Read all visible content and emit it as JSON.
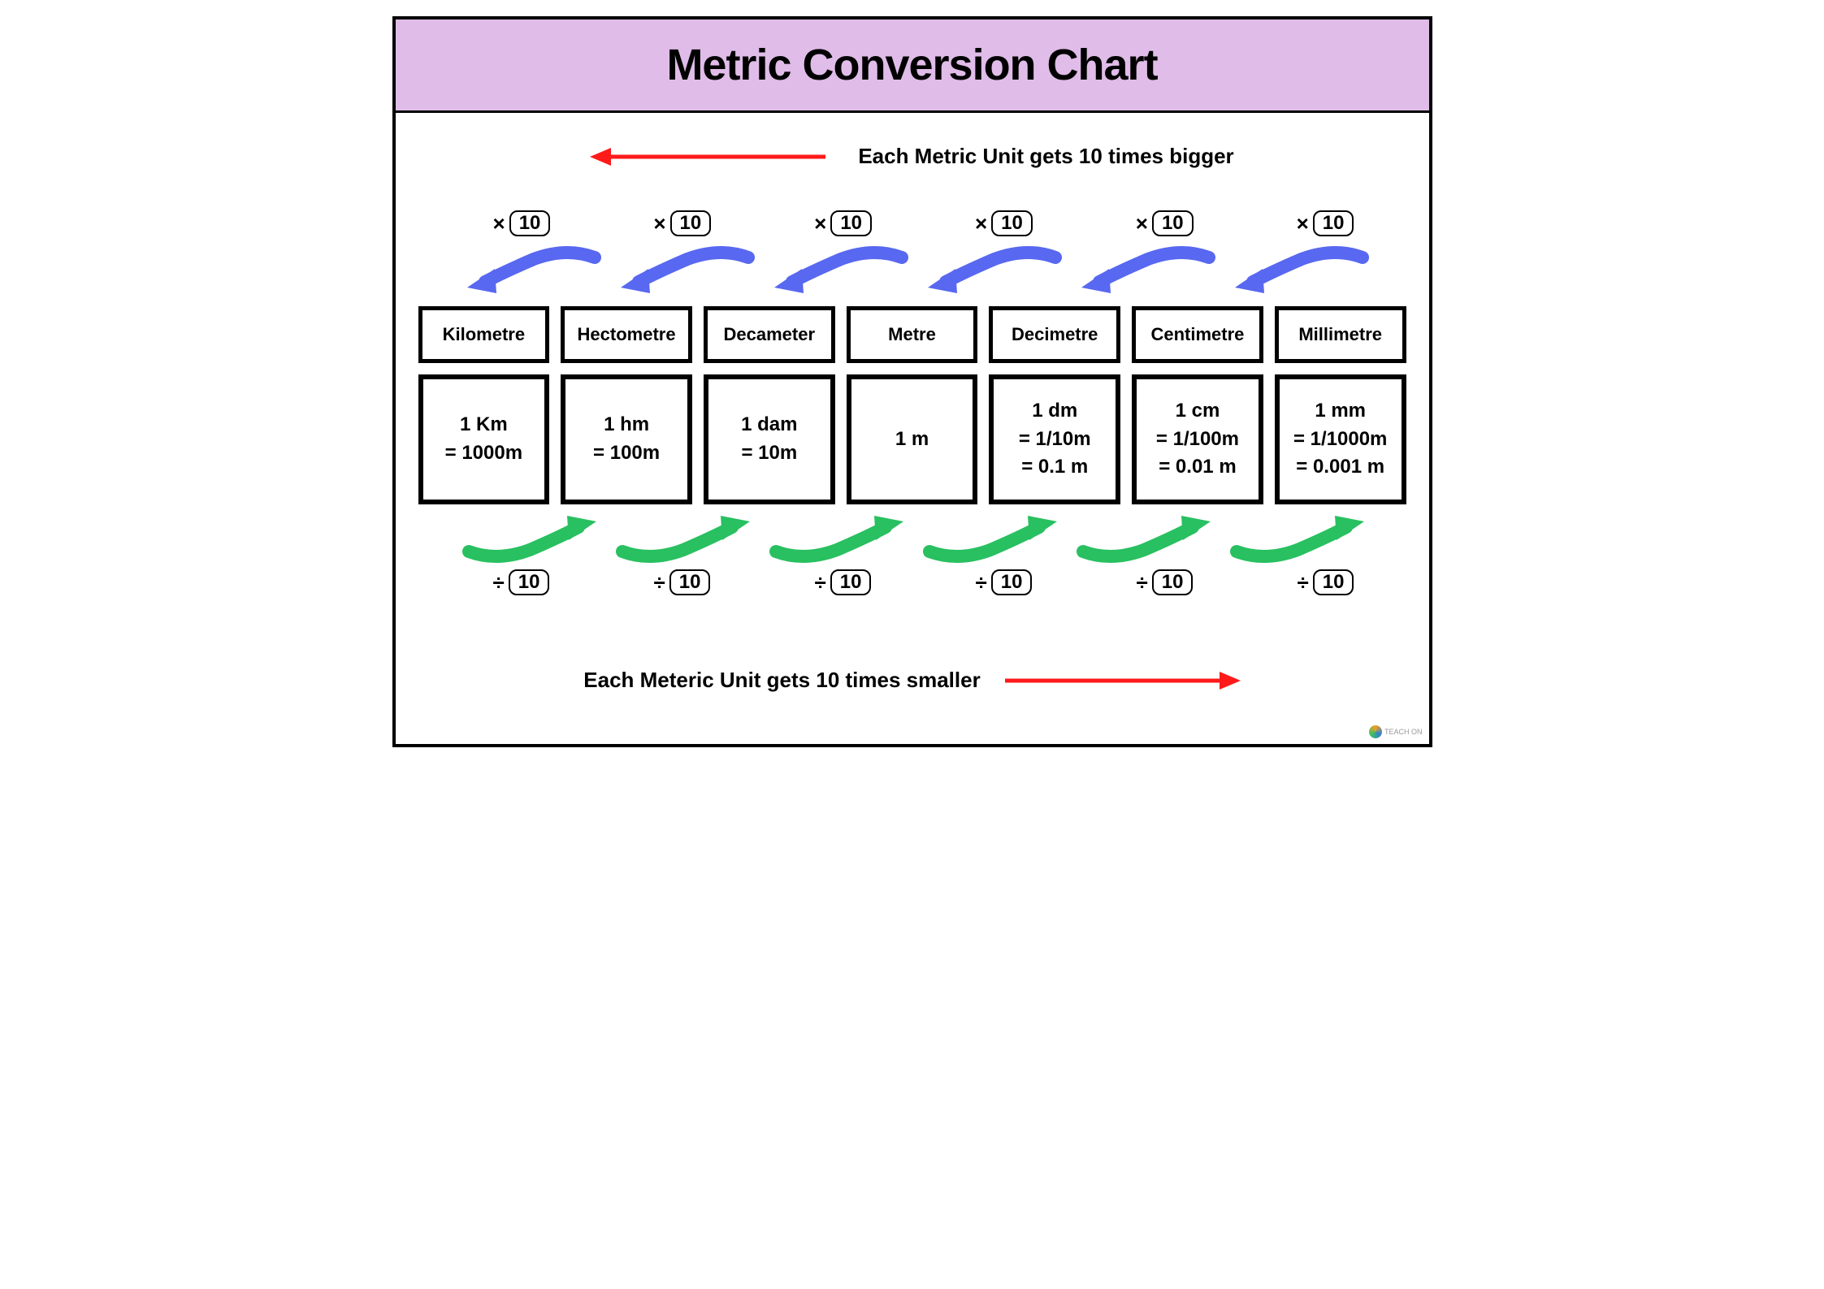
{
  "title": "Metric Conversion Chart",
  "header_bg": "#e0bce8",
  "header_font_size": 54,
  "top_caption": "Each Metric Unit gets 10 times bigger",
  "bottom_caption": "Each Meteric Unit gets 10 times smaller",
  "red_arrow_color": "#ff1a1a",
  "blue_arrow_color": "#5868f0",
  "green_arrow_color": "#28c060",
  "multiply_symbol": "×",
  "divide_symbol": "÷",
  "factor": "10",
  "units": [
    {
      "name": "Kilometre",
      "value": "1 Km\n= 1000m"
    },
    {
      "name": "Hectometre",
      "value": "1 hm\n= 100m"
    },
    {
      "name": "Decameter",
      "value": "1 dam\n= 10m"
    },
    {
      "name": "Metre",
      "value": "1 m"
    },
    {
      "name": "Decimetre",
      "value": "1 dm\n= 1/10m\n= 0.1 m"
    },
    {
      "name": "Centimetre",
      "value": "1 cm\n= 1/100m\n= 0.01 m"
    },
    {
      "name": "Millimetre",
      "value": "1 mm\n= 1/1000m\n= 0.001 m"
    }
  ],
  "num_connectors": 6,
  "border_color": "#000000",
  "body_font_size": 24,
  "logo_text": "TEACH ON"
}
